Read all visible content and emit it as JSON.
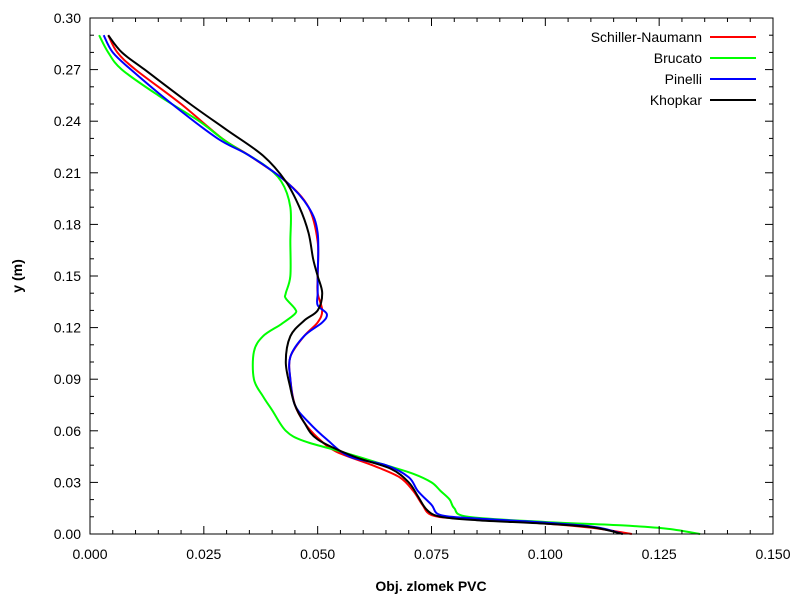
{
  "chart_data": {
    "type": "line",
    "title": "",
    "xlabel": "Obj. zlomek PVC",
    "ylabel": "y (m)",
    "xlim": [
      0.0,
      0.15
    ],
    "ylim": [
      0.0,
      0.3
    ],
    "x_ticks": [
      "0.000",
      "0.025",
      "0.050",
      "0.075",
      "0.100",
      "0.125",
      "0.150"
    ],
    "y_ticks": [
      "0.00",
      "0.03",
      "0.06",
      "0.09",
      "0.12",
      "0.15",
      "0.18",
      "0.21",
      "0.24",
      "0.27",
      "0.30"
    ],
    "grid": false,
    "legend_position": "top-right",
    "series": [
      {
        "name": "Schiller-Naumann",
        "color": "#ff0000",
        "points": [
          [
            0.004,
            0.29
          ],
          [
            0.006,
            0.28
          ],
          [
            0.01,
            0.27
          ],
          [
            0.02,
            0.25
          ],
          [
            0.029,
            0.23
          ],
          [
            0.035,
            0.22
          ],
          [
            0.043,
            0.205
          ],
          [
            0.048,
            0.19
          ],
          [
            0.05,
            0.17
          ],
          [
            0.05,
            0.15
          ],
          [
            0.05,
            0.14
          ],
          [
            0.051,
            0.13
          ],
          [
            0.05,
            0.123
          ],
          [
            0.047,
            0.115
          ],
          [
            0.044,
            0.103
          ],
          [
            0.044,
            0.09
          ],
          [
            0.045,
            0.075
          ],
          [
            0.047,
            0.065
          ],
          [
            0.05,
            0.056
          ],
          [
            0.054,
            0.048
          ],
          [
            0.062,
            0.04
          ],
          [
            0.068,
            0.033
          ],
          [
            0.071,
            0.025
          ],
          [
            0.073,
            0.017
          ],
          [
            0.075,
            0.011
          ],
          [
            0.081,
            0.009
          ],
          [
            0.095,
            0.007
          ],
          [
            0.105,
            0.005
          ],
          [
            0.112,
            0.003
          ],
          [
            0.119,
            0.0
          ]
        ]
      },
      {
        "name": "Brucato",
        "color": "#00ff00",
        "points": [
          [
            0.002,
            0.29
          ],
          [
            0.004,
            0.28
          ],
          [
            0.007,
            0.27
          ],
          [
            0.015,
            0.255
          ],
          [
            0.024,
            0.24
          ],
          [
            0.03,
            0.228
          ],
          [
            0.038,
            0.215
          ],
          [
            0.042,
            0.205
          ],
          [
            0.044,
            0.19
          ],
          [
            0.044,
            0.17
          ],
          [
            0.044,
            0.15
          ],
          [
            0.043,
            0.14
          ],
          [
            0.043,
            0.137
          ],
          [
            0.045,
            0.131
          ],
          [
            0.045,
            0.128
          ],
          [
            0.042,
            0.122
          ],
          [
            0.038,
            0.115
          ],
          [
            0.036,
            0.106
          ],
          [
            0.036,
            0.09
          ],
          [
            0.038,
            0.08
          ],
          [
            0.04,
            0.072
          ],
          [
            0.043,
            0.06
          ],
          [
            0.047,
            0.054
          ],
          [
            0.055,
            0.048
          ],
          [
            0.065,
            0.04
          ],
          [
            0.071,
            0.035
          ],
          [
            0.075,
            0.03
          ],
          [
            0.077,
            0.025
          ],
          [
            0.079,
            0.02
          ],
          [
            0.08,
            0.015
          ],
          [
            0.083,
            0.01
          ],
          [
            0.1,
            0.007
          ],
          [
            0.117,
            0.005
          ],
          [
            0.127,
            0.003
          ],
          [
            0.134,
            0.0
          ]
        ]
      },
      {
        "name": "Pinelli",
        "color": "#0000ff",
        "points": [
          [
            0.003,
            0.29
          ],
          [
            0.005,
            0.28
          ],
          [
            0.009,
            0.27
          ],
          [
            0.018,
            0.25
          ],
          [
            0.028,
            0.23
          ],
          [
            0.035,
            0.22
          ],
          [
            0.043,
            0.205
          ],
          [
            0.048,
            0.19
          ],
          [
            0.05,
            0.175
          ],
          [
            0.05,
            0.15
          ],
          [
            0.05,
            0.14
          ],
          [
            0.05,
            0.133
          ],
          [
            0.052,
            0.128
          ],
          [
            0.051,
            0.123
          ],
          [
            0.047,
            0.115
          ],
          [
            0.044,
            0.103
          ],
          [
            0.044,
            0.09
          ],
          [
            0.045,
            0.075
          ],
          [
            0.048,
            0.065
          ],
          [
            0.052,
            0.055
          ],
          [
            0.057,
            0.045
          ],
          [
            0.065,
            0.04
          ],
          [
            0.07,
            0.033
          ],
          [
            0.072,
            0.025
          ],
          [
            0.075,
            0.017
          ],
          [
            0.077,
            0.011
          ],
          [
            0.085,
            0.009
          ],
          [
            0.098,
            0.007
          ],
          [
            0.108,
            0.005
          ],
          [
            0.113,
            0.003
          ],
          [
            0.117,
            0.0
          ]
        ]
      },
      {
        "name": "Khopkar",
        "color": "#000000",
        "points": [
          [
            0.004,
            0.29
          ],
          [
            0.007,
            0.28
          ],
          [
            0.012,
            0.27
          ],
          [
            0.022,
            0.25
          ],
          [
            0.03,
            0.235
          ],
          [
            0.038,
            0.22
          ],
          [
            0.043,
            0.205
          ],
          [
            0.046,
            0.19
          ],
          [
            0.048,
            0.175
          ],
          [
            0.049,
            0.16
          ],
          [
            0.05,
            0.15
          ],
          [
            0.051,
            0.14
          ],
          [
            0.05,
            0.13
          ],
          [
            0.047,
            0.124
          ],
          [
            0.044,
            0.115
          ],
          [
            0.043,
            0.1
          ],
          [
            0.044,
            0.085
          ],
          [
            0.045,
            0.075
          ],
          [
            0.047,
            0.065
          ],
          [
            0.05,
            0.055
          ],
          [
            0.058,
            0.045
          ],
          [
            0.066,
            0.038
          ],
          [
            0.07,
            0.03
          ],
          [
            0.072,
            0.022
          ],
          [
            0.074,
            0.014
          ],
          [
            0.077,
            0.01
          ],
          [
            0.085,
            0.008
          ],
          [
            0.1,
            0.006
          ],
          [
            0.11,
            0.004
          ],
          [
            0.114,
            0.002
          ],
          [
            0.117,
            0.0
          ]
        ]
      }
    ]
  }
}
